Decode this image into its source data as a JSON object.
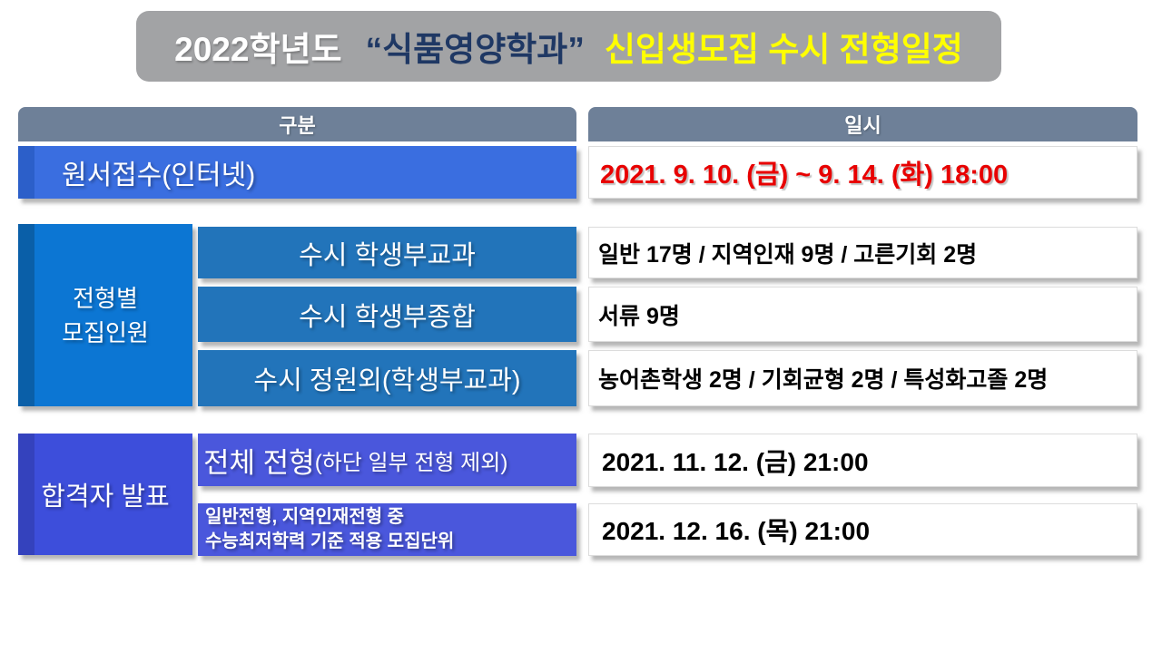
{
  "title": {
    "year": "2022학년도",
    "department": "“식품영양학과”",
    "subject": "신입생모집 수시 전형일정"
  },
  "table": {
    "headers": {
      "category": "구분",
      "datetime": "일시"
    },
    "application": {
      "label": "원서접수(인터넷)",
      "value": "2021. 9. 10. (금) ~ 9. 14. (화) 18:00"
    },
    "quota": {
      "group_line1": "전형별",
      "group_line2": "모집인원",
      "rows": [
        {
          "label": "수시 학생부교과",
          "value": "일반 17명 / 지역인재 9명 / 고른기회 2명"
        },
        {
          "label": "수시 학생부종합",
          "value": "서류 9명"
        },
        {
          "label": "수시 정원외(학생부교과)",
          "value": "농어촌학생 2명 / 기회균형 2명 / 특성화고졸 2명"
        }
      ]
    },
    "announcement": {
      "group_label": "합격자 발표",
      "rows": [
        {
          "label_main": "전체 전형",
          "label_sub": "(하단 일부 전형 제외)",
          "value": "2021. 11. 12. (금) 21:00"
        },
        {
          "label_line1": "일반전형, 지역인재전형 중",
          "label_line2": "수능최저학력 기준 적용 모집단위",
          "value": "2021. 12. 16. (목) 21:00"
        }
      ]
    }
  },
  "colors": {
    "banner_bg": "#A2A3A5",
    "title_year": "#FFFFFF",
    "title_department": "#1F3864",
    "title_subject": "#FFFF00",
    "header_bg": "#6E8098",
    "apply_bar": "#3A6EE0",
    "apply_strip": "#2C5FC9",
    "apply_value": "#E80000",
    "quota_label_bg": "#0C76D3",
    "quota_label_strip": "#0A5FA8",
    "quota_row_bg": "#2274BA",
    "announce_label_bg": "#3D4EDB",
    "announce_label_strip": "#3442BD",
    "announce_row_bg": "#4A57DC",
    "value_text": "#000000"
  }
}
